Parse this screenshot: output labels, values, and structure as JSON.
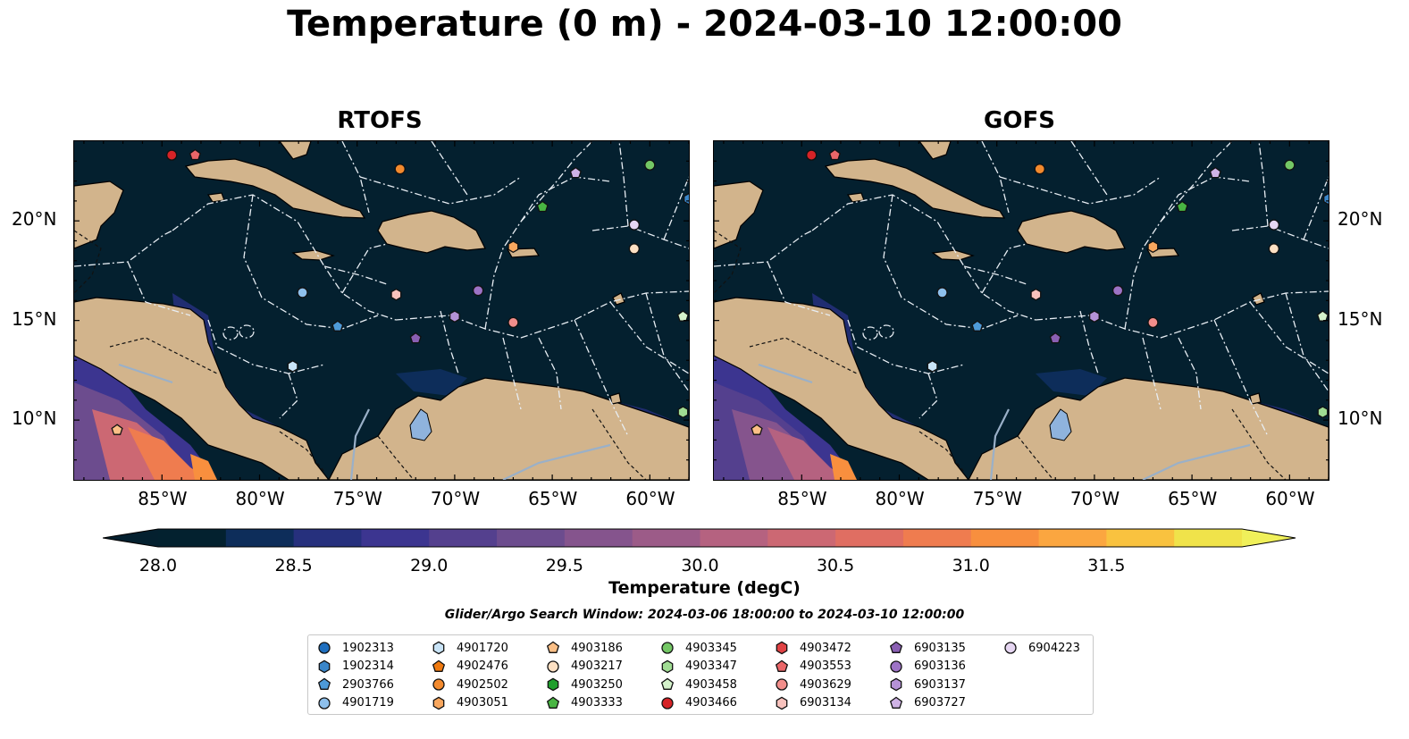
{
  "title": "Temperature (0 m) - 2024-03-10 12:00:00",
  "panels": [
    {
      "title": "RTOFS"
    },
    {
      "title": "GOFS"
    }
  ],
  "map": {
    "x_ticks": [
      "85°W",
      "80°W",
      "75°W",
      "70°W",
      "65°W",
      "60°W"
    ],
    "y_ticks": [
      "20°N",
      "15°N",
      "10°N"
    ],
    "extent": {
      "lon": [
        -89.5,
        -58.0
      ],
      "lat": [
        7.0,
        24.0
      ]
    }
  },
  "colorbar": {
    "label": "Temperature (degC)",
    "ticks": [
      "28.0",
      "28.5",
      "29.0",
      "29.5",
      "30.0",
      "30.5",
      "31.0",
      "31.5"
    ],
    "min": 28.0,
    "max": 31.5,
    "colors": [
      "#03212f",
      "#0d2d5a",
      "#26307d",
      "#3c3590",
      "#54408e",
      "#6c4c8e",
      "#85548d",
      "#9c5b88",
      "#b56280",
      "#cc6873",
      "#e06e62",
      "#ef7c4f",
      "#f88f3e",
      "#fba640",
      "#f9c23f",
      "#f0e34a"
    ]
  },
  "search_window": "Glider/Argo Search Window: 2024-03-06 18:00:00 to 2024-03-10 12:00:00",
  "legend": [
    {
      "label": "1902313",
      "marker": "circle",
      "color": "#1f6fbf"
    },
    {
      "label": "1902314",
      "marker": "hexagon",
      "color": "#3a86c9"
    },
    {
      "label": "2903766",
      "marker": "pentagon",
      "color": "#4d9ad8"
    },
    {
      "label": "4901719",
      "marker": "circle",
      "color": "#8ec0ec"
    },
    {
      "label": "4901720",
      "marker": "hexagon",
      "color": "#c9e4f7"
    },
    {
      "label": "4902476",
      "marker": "pentagon",
      "color": "#f07a10"
    },
    {
      "label": "4902502",
      "marker": "circle",
      "color": "#f38a2e"
    },
    {
      "label": "4903051",
      "marker": "hexagon",
      "color": "#f9a75e"
    },
    {
      "label": "4903186",
      "marker": "pentagon",
      "color": "#fbbf86"
    },
    {
      "label": "4903217",
      "marker": "circle",
      "color": "#fde0c3"
    },
    {
      "label": "4903250",
      "marker": "hexagon",
      "color": "#1f9e2c"
    },
    {
      "label": "4903333",
      "marker": "pentagon",
      "color": "#49b543"
    },
    {
      "label": "4903345",
      "marker": "circle",
      "color": "#74c765"
    },
    {
      "label": "4903347",
      "marker": "hexagon",
      "color": "#a0dc93"
    },
    {
      "label": "4903458",
      "marker": "pentagon",
      "color": "#d4f2cb"
    },
    {
      "label": "4903466",
      "marker": "circle",
      "color": "#d62327"
    },
    {
      "label": "4903472",
      "marker": "hexagon",
      "color": "#e04244"
    },
    {
      "label": "4903553",
      "marker": "pentagon",
      "color": "#ea6668"
    },
    {
      "label": "4903629",
      "marker": "circle",
      "color": "#f28e8b"
    },
    {
      "label": "6903134",
      "marker": "hexagon",
      "color": "#f8c2bd"
    },
    {
      "label": "6903135",
      "marker": "pentagon",
      "color": "#8a5fb3"
    },
    {
      "label": "6903136",
      "marker": "circle",
      "color": "#9d73c6"
    },
    {
      "label": "6903137",
      "marker": "hexagon",
      "color": "#b592d6"
    },
    {
      "label": "6903727",
      "marker": "pentagon",
      "color": "#cfb3e6"
    },
    {
      "label": "6904223",
      "marker": "circle",
      "color": "#e6d6f2"
    }
  ],
  "chart_data": {
    "type": "heatmap",
    "title": "Temperature (0 m) - 2024-03-10 12:00:00",
    "subplots": [
      "RTOFS",
      "GOFS"
    ],
    "xlabel": "",
    "ylabel": "",
    "x_ticks": [
      "85°W",
      "80°W",
      "75°W",
      "70°W",
      "65°W",
      "60°W"
    ],
    "y_ticks": [
      "20°N",
      "15°N",
      "10°N"
    ],
    "colorbar_label": "Temperature (degC)",
    "color_range": [
      28.0,
      31.5
    ],
    "points": [
      {
        "id": "4903466",
        "lon": -84.5,
        "lat": 23.3
      },
      {
        "id": "4903553",
        "lon": -83.3,
        "lat": 23.3
      },
      {
        "id": "4902502",
        "lon": -72.8,
        "lat": 22.6
      },
      {
        "id": "6903727",
        "lon": -63.8,
        "lat": 22.4
      },
      {
        "id": "4903345",
        "lon": -60.0,
        "lat": 22.8
      },
      {
        "id": "4903333",
        "lon": -65.5,
        "lat": 20.7
      },
      {
        "id": "6904223",
        "lon": -60.8,
        "lat": 19.8
      },
      {
        "id": "4903217",
        "lon": -60.8,
        "lat": 18.6
      },
      {
        "id": "4903051",
        "lon": -67.0,
        "lat": 18.7
      },
      {
        "id": "4901719",
        "lon": -77.8,
        "lat": 16.4
      },
      {
        "id": "6903134",
        "lon": -73.0,
        "lat": 16.3
      },
      {
        "id": "6903136",
        "lon": -68.8,
        "lat": 16.5
      },
      {
        "id": "6903137",
        "lon": -70.0,
        "lat": 15.2
      },
      {
        "id": "4903629",
        "lon": -67.0,
        "lat": 14.9
      },
      {
        "id": "2903766",
        "lon": -76.0,
        "lat": 14.7
      },
      {
        "id": "6903135",
        "lon": -72.0,
        "lat": 14.1
      },
      {
        "id": "4903458",
        "lon": -58.3,
        "lat": 15.2
      },
      {
        "id": "4901720",
        "lon": -78.3,
        "lat": 12.7
      },
      {
        "id": "4903347",
        "lon": -58.3,
        "lat": 10.4
      },
      {
        "id": "4903186",
        "lon": -87.3,
        "lat": 9.5
      },
      {
        "id": "1902314",
        "lon": -58.0,
        "lat": 21.1
      }
    ]
  }
}
